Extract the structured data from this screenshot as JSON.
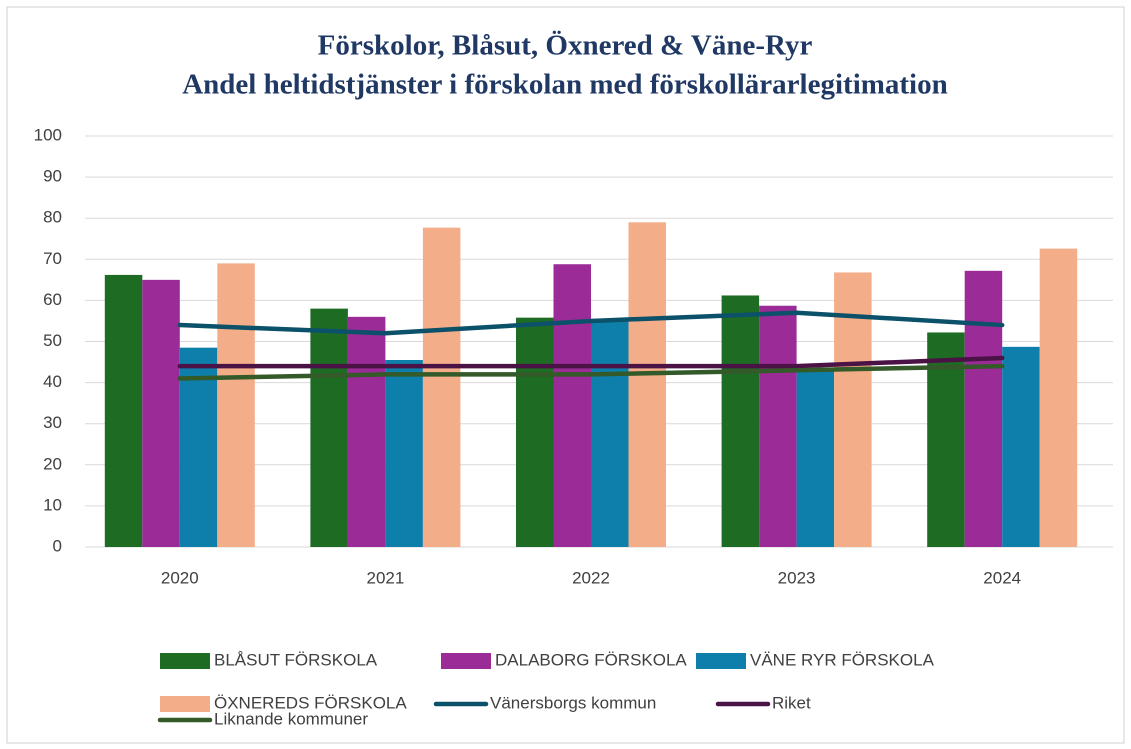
{
  "chart_data": {
    "type": "bar",
    "title": [
      "Förskolor, Blåsut, Öxnered & Väne-Ryr",
      "Andel heltidstjänster i förskolan med förskollärarlegitimation"
    ],
    "categories": [
      "2020",
      "2021",
      "2022",
      "2023",
      "2024"
    ],
    "series": [
      {
        "name": "BLÅSUT FÖRSKOLA",
        "type": "bar",
        "color": "#1e6b24",
        "values": [
          66.2,
          58,
          55.8,
          61.2,
          52.2
        ]
      },
      {
        "name": "DALABORG FÖRSKOLA",
        "type": "bar",
        "color": "#9b2b96",
        "values": [
          65,
          56,
          68.8,
          58.7,
          67.2
        ]
      },
      {
        "name": "VÄNE RYR FÖRSKOLA",
        "type": "bar",
        "color": "#0e7fab",
        "values": [
          48.5,
          45.5,
          55.5,
          43,
          48.7
        ]
      },
      {
        "name": "ÖXNEREDS FÖRSKOLA",
        "type": "bar",
        "color": "#f3ad88",
        "values": [
          69,
          77.7,
          79,
          66.8,
          72.6
        ]
      },
      {
        "name": "Vänersborgs kommun",
        "type": "line",
        "color": "#0b5169",
        "values": [
          54,
          52,
          55,
          57,
          54
        ]
      },
      {
        "name": "Riket",
        "type": "line",
        "color": "#4a1245",
        "values": [
          44,
          44,
          44,
          44,
          46
        ]
      },
      {
        "name": "Liknande kommuner",
        "type": "line",
        "color": "#335a28",
        "values": [
          41,
          42,
          42,
          43,
          44
        ]
      }
    ],
    "ylim": [
      0,
      100
    ],
    "yticks": [
      0,
      10,
      20,
      30,
      40,
      50,
      60,
      70,
      80,
      90,
      100
    ],
    "grid": true
  }
}
